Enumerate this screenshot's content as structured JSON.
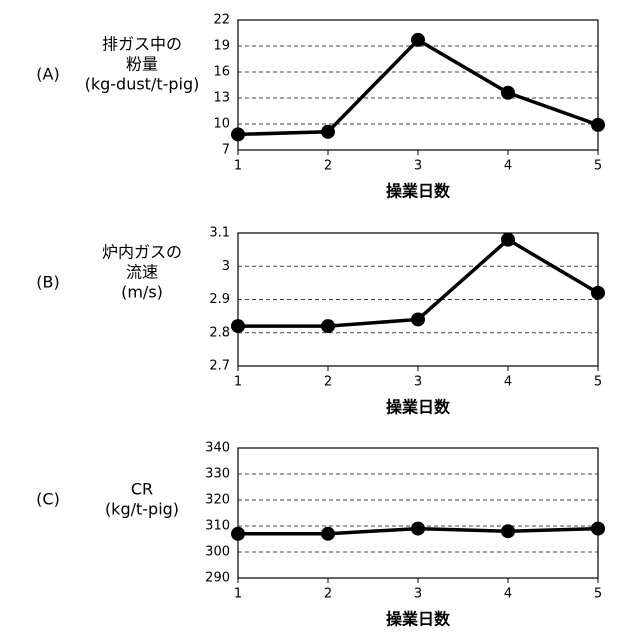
{
  "chart_data": [
    {
      "type": "line",
      "panel": "(A)",
      "ylabel": [
        "排ガス中の",
        "粉量",
        "(kg-dust/t-pig)"
      ],
      "xlabel": "操業日数",
      "x": [
        1,
        2,
        3,
        4,
        5
      ],
      "values": [
        8.8,
        9.1,
        19.7,
        13.6,
        9.9
      ],
      "color": "#000000",
      "xlim": [
        1,
        5
      ],
      "xticks": [
        1,
        2,
        3,
        4,
        5
      ],
      "ylim": [
        7,
        22
      ],
      "yticks": [
        7,
        10,
        13,
        16,
        19,
        22
      ],
      "grid": true
    },
    {
      "type": "line",
      "panel": "(B)",
      "ylabel": [
        "炉内ガスの",
        "流速",
        "(m/s)"
      ],
      "xlabel": "操業日数",
      "x": [
        1,
        2,
        3,
        4,
        5
      ],
      "values": [
        2.82,
        2.82,
        2.84,
        3.08,
        2.92
      ],
      "color": "#000000",
      "xlim": [
        1,
        5
      ],
      "xticks": [
        1,
        2,
        3,
        4,
        5
      ],
      "ylim": [
        2.7,
        3.1
      ],
      "yticks": [
        2.7,
        2.8,
        2.9,
        3,
        3.1
      ],
      "grid": true
    },
    {
      "type": "line",
      "panel": "(C)",
      "ylabel": [
        "CR",
        "(kg/t-pig)"
      ],
      "xlabel": "操業日数",
      "x": [
        1,
        2,
        3,
        4,
        5
      ],
      "values": [
        307,
        307,
        309,
        308,
        309
      ],
      "color": "#000000",
      "xlim": [
        1,
        5
      ],
      "xticks": [
        1,
        2,
        3,
        4,
        5
      ],
      "ylim": [
        290,
        340
      ],
      "yticks": [
        290,
        300,
        310,
        320,
        330,
        340
      ],
      "grid": true
    }
  ]
}
